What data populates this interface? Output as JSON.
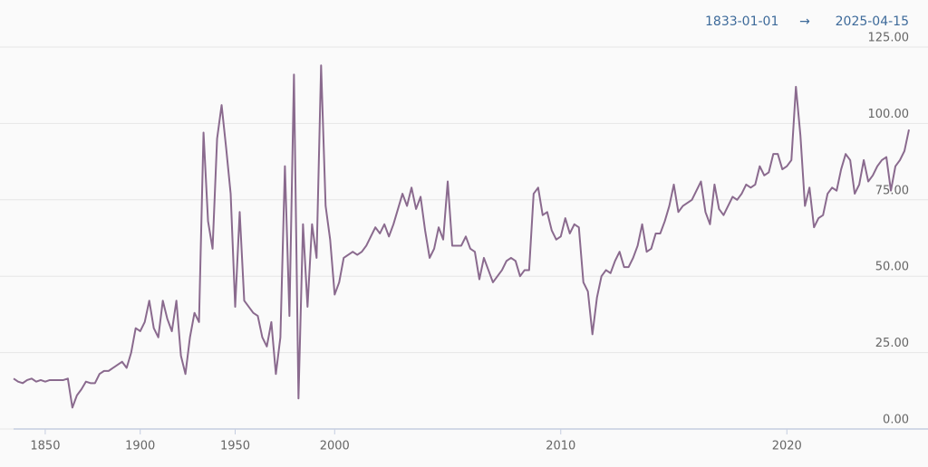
{
  "chart_data": {
    "type": "line",
    "date_range": {
      "start": "1833-01-01",
      "separator": "→",
      "end": "2025-04-15"
    },
    "categories": [
      null,
      null,
      null,
      null,
      null,
      null,
      null,
      "1850",
      null,
      null,
      null,
      null,
      null,
      null,
      null,
      null,
      null,
      null,
      null,
      null,
      null,
      null,
      null,
      null,
      null,
      null,
      null,
      null,
      "1900",
      null,
      null,
      null,
      null,
      null,
      null,
      null,
      null,
      null,
      null,
      null,
      null,
      null,
      null,
      null,
      null,
      null,
      null,
      null,
      null,
      "1950",
      null,
      null,
      null,
      null,
      null,
      null,
      null,
      null,
      null,
      null,
      null,
      null,
      null,
      null,
      null,
      null,
      null,
      null,
      null,
      null,
      null,
      "2000",
      null,
      null,
      null,
      null,
      null,
      null,
      null,
      null,
      null,
      null,
      null,
      null,
      null,
      null,
      null,
      null,
      null,
      null,
      null,
      null,
      null,
      null,
      null,
      null,
      null,
      null,
      null,
      null,
      null,
      null,
      null,
      null,
      null,
      null,
      null,
      null,
      null,
      null,
      null,
      null,
      null,
      null,
      null,
      null,
      null,
      null,
      null,
      null,
      null,
      "2010",
      null,
      null,
      null,
      null,
      null,
      null,
      null,
      null,
      null,
      null,
      null,
      null,
      null,
      null,
      null,
      null,
      null,
      null,
      null,
      null,
      null,
      null,
      null,
      null,
      null,
      null,
      null,
      null,
      null,
      null,
      null,
      null,
      null,
      null,
      null,
      null,
      null,
      null,
      null,
      null,
      null,
      null,
      null,
      null,
      null,
      null,
      null,
      null,
      null,
      "2020",
      null,
      null,
      null,
      null,
      null,
      null,
      null,
      null,
      null,
      null,
      null,
      null,
      null,
      null,
      null,
      null,
      null,
      null,
      null,
      null,
      null,
      null,
      null,
      null,
      null,
      null,
      null
    ],
    "values": [
      16.5,
      15.5,
      15,
      16,
      16.5,
      15.5,
      16,
      15.5,
      16,
      16,
      16,
      16,
      16.5,
      7,
      11,
      13,
      15.5,
      15,
      15,
      18,
      19,
      19,
      20,
      21,
      22,
      20,
      25,
      33,
      32,
      35,
      42,
      33,
      30,
      42,
      36,
      32,
      42,
      24,
      18,
      30,
      38,
      35,
      97,
      68,
      59,
      95,
      106,
      92,
      77,
      40,
      71,
      42,
      40,
      38,
      37,
      30,
      27,
      35,
      18,
      30,
      86,
      37,
      116,
      10,
      67,
      40,
      67,
      56,
      119,
      73,
      62,
      44,
      48,
      56,
      57,
      58,
      57,
      58,
      60,
      63,
      66,
      64,
      67,
      63,
      67,
      72,
      77,
      73,
      79,
      72,
      76,
      65,
      56,
      59,
      66,
      62,
      81,
      60,
      60,
      60,
      63,
      59,
      58,
      49,
      56,
      52,
      48,
      50,
      52,
      55,
      56,
      55,
      50,
      52,
      52,
      77,
      79,
      70,
      71,
      65,
      62,
      63,
      69,
      64,
      67,
      66,
      48,
      45,
      31,
      43,
      50,
      52,
      51,
      55,
      58,
      53,
      53,
      56,
      60,
      67,
      58,
      59,
      64,
      64,
      68,
      73,
      80,
      71,
      73,
      74,
      75,
      78,
      81,
      71,
      67,
      80,
      72,
      70,
      73,
      76,
      75,
      77,
      80,
      79,
      80,
      86,
      83,
      84,
      90,
      90,
      85,
      86,
      88,
      112,
      96,
      73,
      79,
      66,
      69,
      70,
      77,
      79,
      78,
      85,
      90,
      88,
      77,
      80,
      88,
      81,
      83,
      86,
      88,
      89,
      78,
      86,
      88,
      91,
      98
    ],
    "color": "#8a6a8e",
    "ylim": [
      0,
      125
    ],
    "yticks": [
      {
        "value": 0,
        "label": "0.00"
      },
      {
        "value": 25,
        "label": "25.00"
      },
      {
        "value": 50,
        "label": "50.00"
      },
      {
        "value": 75,
        "label": "75.00"
      },
      {
        "value": 100,
        "label": "100.00"
      },
      {
        "value": 125,
        "label": "125.00"
      }
    ],
    "grid": true
  }
}
